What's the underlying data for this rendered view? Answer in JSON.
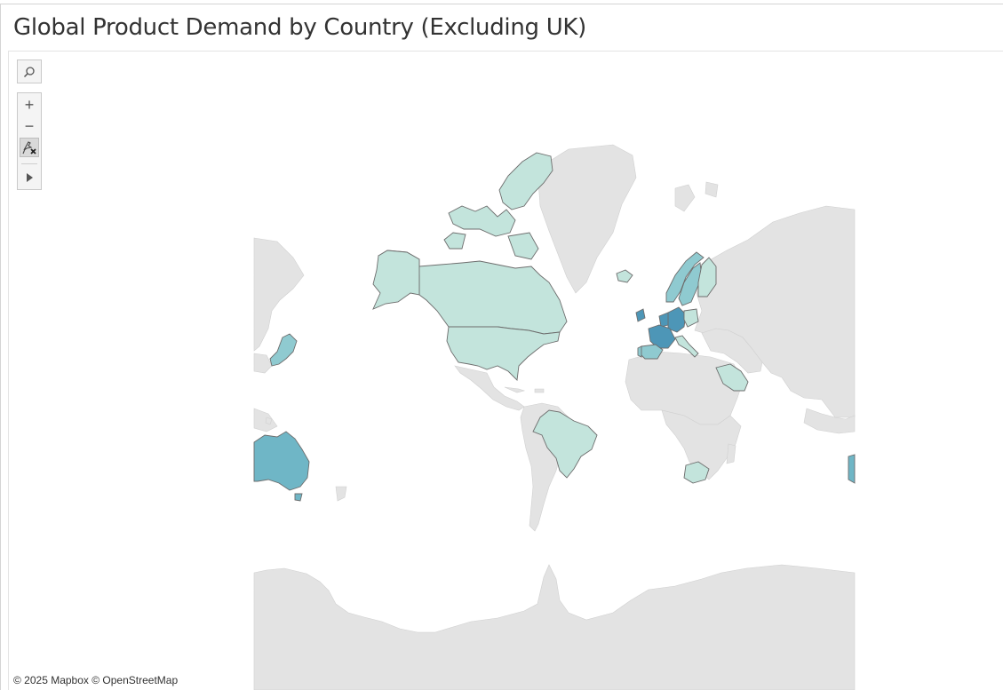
{
  "title": "Global Product Demand by Country (Excluding UK)",
  "attribution": "© 2025 Mapbox © OpenStreetMap",
  "toolbar": [
    {
      "name": "search-button",
      "icon": "search-icon"
    },
    {
      "name": "zoom-in-button",
      "icon": "plus-icon",
      "glyph": "+"
    },
    {
      "name": "zoom-out-button",
      "icon": "minus-icon",
      "glyph": "−"
    },
    {
      "name": "pin-map-button",
      "icon": "unpin-icon"
    },
    {
      "name": "expand-toolbar-button",
      "icon": "play-icon"
    }
  ],
  "colors": {
    "background_land": "#e3e3e3",
    "ocean": "#ffffff",
    "low_demand": "#c3e4dc",
    "medium_demand": "#8fcad0",
    "high_demand": "#6fb6c6",
    "highest_demand": "#4d96b7"
  },
  "highlighted_countries": [
    {
      "name": "Canada",
      "level": "low_demand"
    },
    {
      "name": "United States",
      "level": "low_demand"
    },
    {
      "name": "Brazil",
      "level": "low_demand"
    },
    {
      "name": "Japan",
      "level": "medium_demand"
    },
    {
      "name": "Australia",
      "level": "high_demand"
    },
    {
      "name": "Iceland",
      "level": "low_demand"
    },
    {
      "name": "Norway",
      "level": "medium_demand"
    },
    {
      "name": "Sweden",
      "level": "medium_demand"
    },
    {
      "name": "Finland",
      "level": "low_demand"
    },
    {
      "name": "Ireland",
      "level": "highest_demand"
    },
    {
      "name": "France",
      "level": "highest_demand"
    },
    {
      "name": "Germany",
      "level": "highest_demand"
    },
    {
      "name": "Spain",
      "level": "medium_demand"
    },
    {
      "name": "Portugal",
      "level": "medium_demand"
    },
    {
      "name": "Italy",
      "level": "low_demand"
    },
    {
      "name": "Poland",
      "level": "low_demand"
    },
    {
      "name": "Saudi Arabia",
      "level": "low_demand"
    },
    {
      "name": "South Africa",
      "level": "low_demand"
    },
    {
      "name": "New Zealand",
      "level": "high_demand"
    }
  ]
}
